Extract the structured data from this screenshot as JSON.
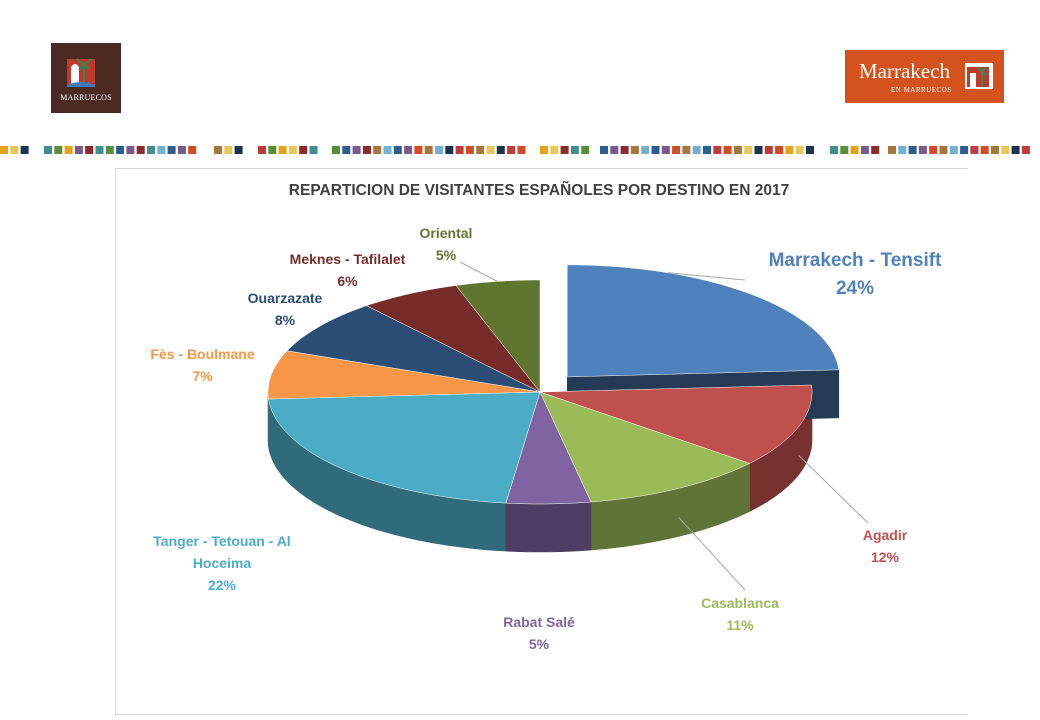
{
  "logos": {
    "left_caption": "MARRUECOS",
    "right_brand": "Marrakech",
    "right_sub": "EN MARRUECOS"
  },
  "colors": {
    "marrakech": "#4f81bd",
    "agadir": "#c0504d",
    "casablanca": "#9bbb59",
    "rabat": "#8064a2",
    "tanger": "#4bacc6",
    "fes": "#f79646",
    "ouarzazate": "#2c4d75",
    "meknes": "#772c2a",
    "oriental": "#5f7530"
  },
  "chart_data": {
    "type": "pie",
    "title": "REPARTICION DE VISITANTES ESPAÑOLES POR DESTINO EN 2017",
    "legend": "none (data labels outside slices)",
    "slices": [
      {
        "label": "Marrakech - Tensift",
        "value": 24,
        "display": "24%",
        "exploded": true
      },
      {
        "label": "Agadir",
        "value": 12,
        "display": "12%"
      },
      {
        "label": "Casablanca",
        "value": 11,
        "display": "11%"
      },
      {
        "label": "Rabat Salé",
        "value": 5,
        "display": "5%"
      },
      {
        "label": "Tanger - Tetouan - Al Hoceima",
        "value": 22,
        "display": "22%"
      },
      {
        "label": "Fès - Boulmane",
        "value": 7,
        "display": "7%"
      },
      {
        "label": "Ouarzazate",
        "value": 8,
        "display": "8%"
      },
      {
        "label": "Meknes - Tafilalet",
        "value": 6,
        "display": "6%"
      },
      {
        "label": "Oriental",
        "value": 5,
        "display": "5%"
      }
    ],
    "labels": {
      "marrakech": {
        "name": "Marrakech - Tensift",
        "pct": "24%"
      },
      "agadir": {
        "name": "Agadir",
        "pct": "12%"
      },
      "casablanca": {
        "name": "Casablanca",
        "pct": "11%"
      },
      "rabat": {
        "name": "Rabat Salé",
        "pct": "5%"
      },
      "tanger": {
        "name1": "Tanger - Tetouan - Al",
        "name2": "Hoceima",
        "pct": "22%"
      },
      "fes": {
        "name": "Fès - Boulmane",
        "pct": "7%"
      },
      "ouarzazate": {
        "name": "Ouarzazate",
        "pct": "8%"
      },
      "meknes": {
        "name": "Meknes - Tafilalet",
        "pct": "6%"
      },
      "oriental": {
        "name": "Oriental",
        "pct": "5%"
      }
    }
  }
}
